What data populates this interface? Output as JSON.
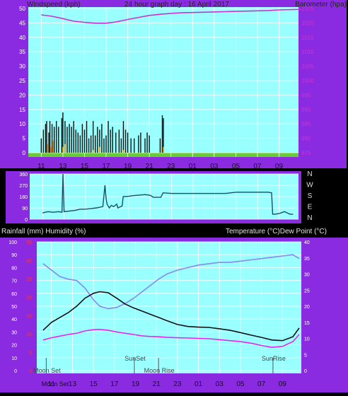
{
  "header": {
    "left": "Windspeed (kph)",
    "center": "24 hour graph day : 16 April 2017",
    "right": "Barometer (hpa)"
  },
  "wind_dir_panel": {
    "compass_labels": [
      "N",
      "W",
      "S",
      "E",
      "N"
    ]
  },
  "bottom_header": {
    "left": "Rainfall (mm)  Humidity (%)",
    "right": "Temperature (°C)Dew Point (°C)"
  },
  "annotations": {
    "moon_set": "Moon Set",
    "sun_set": "SunSet",
    "moon_rise": "Moon Rise",
    "sun_rise": "SunRise"
  },
  "colors": {
    "frame": "#8a2be2",
    "plot_bg": "#99ffff",
    "barometer": "#cc33cc",
    "humidity": "#8888ee",
    "temperature": "#111111",
    "dew_point": "#ee22ee",
    "wind_dir": "#1a4f6a",
    "rain_axis": "#ff3333",
    "gust": "#ff9900"
  },
  "chart_data": [
    {
      "type": "line",
      "name": "wind-barometer",
      "x_hours": [
        0,
        12,
        24
      ],
      "x_tick_labels": [
        "11",
        "13",
        "15",
        "17",
        "19",
        "21",
        "23",
        "01",
        "03",
        "05",
        "07",
        "09"
      ],
      "ylim_left": [
        0,
        50
      ],
      "y_left_ticks": [
        "50",
        "45",
        "40",
        "35",
        "30",
        "25",
        "20",
        "15",
        "10",
        "5",
        "0"
      ],
      "ylim_right": [
        975,
        1025
      ],
      "y_right_ticks": [
        "1025",
        "1020",
        "1015",
        "1010",
        "1005",
        "1000",
        "995",
        "990",
        "985",
        "980",
        "975"
      ],
      "barometer_hpa": [
        [
          0,
          1022.8
        ],
        [
          1,
          1022.3
        ],
        [
          2,
          1021.5
        ],
        [
          3,
          1020.6
        ],
        [
          4,
          1020.2
        ],
        [
          5,
          1019.9
        ],
        [
          6,
          1019.9
        ],
        [
          7,
          1020.4
        ],
        [
          8,
          1021.2
        ],
        [
          9,
          1021.9
        ],
        [
          10,
          1022.6
        ],
        [
          11,
          1023.0
        ],
        [
          12,
          1023.3
        ],
        [
          13,
          1023.5
        ],
        [
          14,
          1023.6
        ],
        [
          15,
          1023.7
        ],
        [
          16,
          1023.8
        ],
        [
          17,
          1023.9
        ],
        [
          18,
          1024.0
        ],
        [
          19,
          1024.1
        ],
        [
          20,
          1024.2
        ],
        [
          21,
          1024.3
        ],
        [
          22,
          1024.5
        ],
        [
          23,
          1024.6
        ],
        [
          24,
          1024.7
        ]
      ],
      "wind_bars_kph": [
        [
          0.0,
          5
        ],
        [
          0.2,
          8
        ],
        [
          0.4,
          10
        ],
        [
          0.5,
          11
        ],
        [
          0.7,
          7
        ],
        [
          0.8,
          11
        ],
        [
          1.0,
          10
        ],
        [
          1.2,
          9
        ],
        [
          1.4,
          11
        ],
        [
          1.6,
          9
        ],
        [
          1.9,
          12
        ],
        [
          2.0,
          14
        ],
        [
          2.2,
          11
        ],
        [
          2.4,
          9
        ],
        [
          2.6,
          10
        ],
        [
          2.8,
          9
        ],
        [
          3.0,
          11
        ],
        [
          3.2,
          8
        ],
        [
          3.4,
          7
        ],
        [
          3.6,
          6
        ],
        [
          3.8,
          10
        ],
        [
          4.0,
          8
        ],
        [
          4.2,
          11
        ],
        [
          4.4,
          5
        ],
        [
          4.6,
          6
        ],
        [
          4.8,
          11
        ],
        [
          5.0,
          6
        ],
        [
          5.2,
          9
        ],
        [
          5.4,
          8
        ],
        [
          5.6,
          10
        ],
        [
          5.8,
          5
        ],
        [
          6.0,
          6
        ],
        [
          6.2,
          11
        ],
        [
          6.4,
          8
        ],
        [
          6.6,
          9
        ],
        [
          6.9,
          7
        ],
        [
          7.2,
          8
        ],
        [
          7.4,
          5
        ],
        [
          7.6,
          11
        ],
        [
          7.8,
          8
        ],
        [
          8.0,
          7
        ],
        [
          8.3,
          5
        ],
        [
          8.6,
          5
        ],
        [
          9.0,
          6
        ],
        [
          9.2,
          7
        ],
        [
          9.6,
          5
        ],
        [
          9.8,
          7
        ],
        [
          10.0,
          6
        ],
        [
          11.0,
          5
        ],
        [
          11.2,
          13
        ],
        [
          11.3,
          12
        ]
      ],
      "gust_bars_kph": [
        [
          0.6,
          3
        ],
        [
          0.9,
          2
        ],
        [
          1.1,
          4
        ],
        [
          2.0,
          2
        ],
        [
          2.2,
          3
        ],
        [
          4.8,
          1
        ],
        [
          5.4,
          2
        ],
        [
          7.6,
          1
        ],
        [
          11.3,
          2
        ]
      ]
    },
    {
      "type": "line",
      "name": "wind-direction",
      "y_ticks": [
        "360",
        "270",
        "180",
        "90",
        "0"
      ],
      "ylim": [
        0,
        360
      ],
      "direction_deg": [
        [
          0,
          50
        ],
        [
          0.5,
          60
        ],
        [
          1.0,
          55
        ],
        [
          1.5,
          60
        ],
        [
          1.8,
          55
        ],
        [
          1.9,
          360
        ],
        [
          2.0,
          60
        ],
        [
          3.0,
          70
        ],
        [
          3.5,
          80
        ],
        [
          4.0,
          80
        ],
        [
          4.5,
          85
        ],
        [
          5.0,
          90
        ],
        [
          5.6,
          100
        ],
        [
          5.8,
          270
        ],
        [
          5.9,
          170
        ],
        [
          6.0,
          120
        ],
        [
          6.2,
          90
        ],
        [
          6.4,
          110
        ],
        [
          6.6,
          100
        ],
        [
          6.9,
          120
        ],
        [
          7.0,
          90
        ],
        [
          7.4,
          105
        ],
        [
          7.5,
          180
        ],
        [
          8.0,
          182
        ],
        [
          8.5,
          188
        ],
        [
          9.0,
          192
        ],
        [
          9.5,
          196
        ],
        [
          10.0,
          190
        ],
        [
          10.3,
          175
        ],
        [
          11.0,
          175
        ],
        [
          11.2,
          210
        ],
        [
          12.0,
          205
        ],
        [
          13.0,
          205
        ],
        [
          14.0,
          205
        ],
        [
          15.0,
          205
        ],
        [
          16.0,
          205
        ],
        [
          17.0,
          205
        ],
        [
          18.0,
          215
        ],
        [
          19.0,
          215
        ],
        [
          20.0,
          215
        ],
        [
          21.0,
          215
        ],
        [
          21.3,
          210
        ],
        [
          21.4,
          40
        ],
        [
          21.6,
          40
        ],
        [
          22.0,
          45
        ],
        [
          22.5,
          60
        ],
        [
          23.0,
          40
        ],
        [
          23.3,
          40
        ]
      ]
    },
    {
      "type": "line",
      "name": "temperature-humidity",
      "x_tick_labels": [
        "11",
        "13",
        "15",
        "17",
        "19",
        "21",
        "23",
        "01",
        "03",
        "05",
        "07",
        "09"
      ],
      "ylim_humidity": [
        0,
        100
      ],
      "y_humidity_ticks": [
        "100",
        "90",
        "80",
        "70",
        "60",
        "50",
        "40",
        "30",
        "20",
        "10",
        "0"
      ],
      "ylim_rain": [
        0,
        35
      ],
      "y_rain_ticks": [
        "35",
        "30",
        "25",
        "20",
        "15",
        "10",
        "5",
        "0"
      ],
      "ylim_temp": [
        0,
        40
      ],
      "y_temp_ticks": [
        "40",
        "35",
        "30",
        "25",
        "20",
        "15",
        "10",
        "5",
        "0"
      ],
      "humidity_pct": [
        [
          -0.8,
          83
        ],
        [
          0,
          78
        ],
        [
          0.8,
          73
        ],
        [
          1.6,
          71
        ],
        [
          2.4,
          70
        ],
        [
          3.2,
          64
        ],
        [
          4.0,
          55
        ],
        [
          4.6,
          50
        ],
        [
          5.4,
          48
        ],
        [
          6.2,
          49
        ],
        [
          7.0,
          52
        ],
        [
          7.8,
          56
        ],
        [
          8.6,
          61
        ],
        [
          9.4,
          66
        ],
        [
          10.2,
          71
        ],
        [
          11.0,
          75
        ],
        [
          12.0,
          78
        ],
        [
          13.0,
          80
        ],
        [
          14.0,
          82
        ],
        [
          15.0,
          83
        ],
        [
          16.0,
          84
        ],
        [
          17.0,
          84
        ],
        [
          18.0,
          85
        ],
        [
          19.0,
          86
        ],
        [
          20.0,
          87
        ],
        [
          21.0,
          88
        ],
        [
          22.0,
          89
        ],
        [
          23.0,
          90
        ],
        [
          23.6,
          87
        ]
      ],
      "temperature_c": [
        [
          -0.8,
          12.5
        ],
        [
          0,
          15
        ],
        [
          0.8,
          16.5
        ],
        [
          1.6,
          18
        ],
        [
          2.4,
          20
        ],
        [
          3.2,
          22.5
        ],
        [
          4.0,
          24
        ],
        [
          4.6,
          24.5
        ],
        [
          5.4,
          24.2
        ],
        [
          6.2,
          22.5
        ],
        [
          7.0,
          20.7
        ],
        [
          7.8,
          19.5
        ],
        [
          8.6,
          18.5
        ],
        [
          9.4,
          17.5
        ],
        [
          10.2,
          16.5
        ],
        [
          11.0,
          15.5
        ],
        [
          12.0,
          14.3
        ],
        [
          13.0,
          13.7
        ],
        [
          14.0,
          13.5
        ],
        [
          15.0,
          13.4
        ],
        [
          16.0,
          13
        ],
        [
          17.0,
          12.5
        ],
        [
          18.0,
          11.8
        ],
        [
          19.0,
          11
        ],
        [
          20.0,
          10.3
        ],
        [
          21.0,
          9.5
        ],
        [
          22.0,
          9.3
        ],
        [
          23.0,
          10.5
        ],
        [
          23.6,
          13.2
        ]
      ],
      "dew_point_c": [
        [
          -0.8,
          9.5
        ],
        [
          0,
          10.2
        ],
        [
          0.8,
          10.7
        ],
        [
          1.6,
          11.2
        ],
        [
          2.4,
          11.6
        ],
        [
          3.2,
          12.3
        ],
        [
          4.0,
          12.7
        ],
        [
          4.6,
          12.8
        ],
        [
          5.4,
          12.5
        ],
        [
          6.2,
          12
        ],
        [
          7.0,
          11.6
        ],
        [
          7.8,
          11.2
        ],
        [
          8.6,
          10.8
        ],
        [
          9.4,
          10.6
        ],
        [
          10.2,
          10.5
        ],
        [
          11.0,
          10.3
        ],
        [
          12.0,
          10.2
        ],
        [
          13.0,
          10.1
        ],
        [
          14.0,
          10
        ],
        [
          15.0,
          9.9
        ],
        [
          16.0,
          9.6
        ],
        [
          17.0,
          9.3
        ],
        [
          18.0,
          9.0
        ],
        [
          19.0,
          8.5
        ],
        [
          20.0,
          7.8
        ],
        [
          21.0,
          7.2
        ],
        [
          22.0,
          7.5
        ],
        [
          23.0,
          9.0
        ],
        [
          23.6,
          11.2
        ]
      ],
      "moon_set_hour": -0.5,
      "sun_set_hour": 7.9,
      "moon_rise_hour": 10.2,
      "sun_rise_hour": 21.1
    }
  ]
}
